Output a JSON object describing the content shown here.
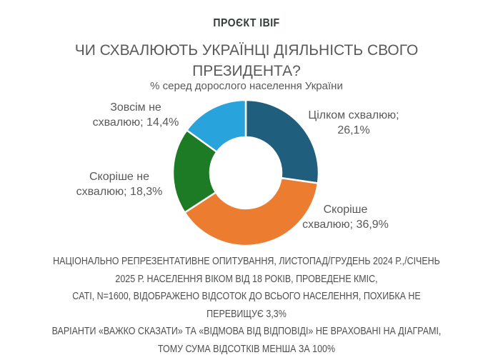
{
  "header": {
    "project_label": "ПРОЄКТ IBIF"
  },
  "title": "ЧИ СХВАЛЮЮТЬ УКРАЇНЦІ ДІЯЛЬНІСТЬ СВОГО ПРЕЗИДЕНТА?",
  "subtitle": "% серед дорослого населення України",
  "chart_data": {
    "type": "pie",
    "subtype": "donut",
    "title": "ЧИ СХВАЛЮЮТЬ УКРАЇНЦІ ДІЯЛЬНІСТЬ СВОГО ПРЕЗИДЕНТА?",
    "subtitle": "% серед дорослого населення України",
    "unit": "%",
    "start_angle_deg": 0,
    "direction": "clockwise",
    "values_sum": 95.7,
    "outer_radius_px": 102,
    "inner_radius_px": 50,
    "slices": [
      {
        "label": "Цілком схвалюю",
        "value": 26.1,
        "display_value": "26,1%",
        "color": "#205E7E",
        "callout_lines": [
          "Цілком схвалюю;",
          "26,1%"
        ]
      },
      {
        "label": "Скоріше схвалюю",
        "value": 36.9,
        "display_value": "36,9%",
        "color": "#EC7C30",
        "callout_lines": [
          "Скоріше",
          "схвалюю; 36,9%"
        ]
      },
      {
        "label": "Скоріше не схвалюю",
        "value": 18.3,
        "display_value": "18,3%",
        "color": "#1E7B25",
        "callout_lines": [
          "Скоріше не",
          "схвалюю; 18,3%"
        ]
      },
      {
        "label": "Зовсім не схвалюю",
        "value": 14.4,
        "display_value": "14,4%",
        "color": "#29A3DB",
        "callout_lines": [
          "Зовсім не",
          "схвалюю; 14,4%"
        ]
      }
    ]
  },
  "footnotes": [
    {
      "lines": [
        "НАЦІОНАЛЬНО РЕПРЕЗЕНТАТИВНЕ ОПИТУВАННЯ, ЛИСТОПАД/ГРУДЕНЬ 2024 Р.,/СІЧЕНЬ",
        "2025 Р. НАСЕЛЕННЯ ВІКОМ ВІД 18 РОКІВ, ПРОВЕДЕНЕ КМІС,"
      ]
    },
    {
      "lines": [
        "CATI, N=1600, ВІДОБРАЖЕНО ВІДСОТОК ДО ВСЬОГО НАСЕЛЕННЯ, ПОХИБКА НЕ",
        "ПЕРЕВИЩУЄ 3,3%"
      ]
    },
    {
      "lines": [
        "ВАРІАНТИ «ВАЖКО СКАЗАТИ» ТА «ВІДМОВА ВІД ВІДПОВІДІ» НЕ ВРАХОВАНІ НА ДІАГРАМІ,",
        "ТОМУ СУМА ВІДСОТКІВ МЕНША ЗА 100%"
      ]
    }
  ]
}
